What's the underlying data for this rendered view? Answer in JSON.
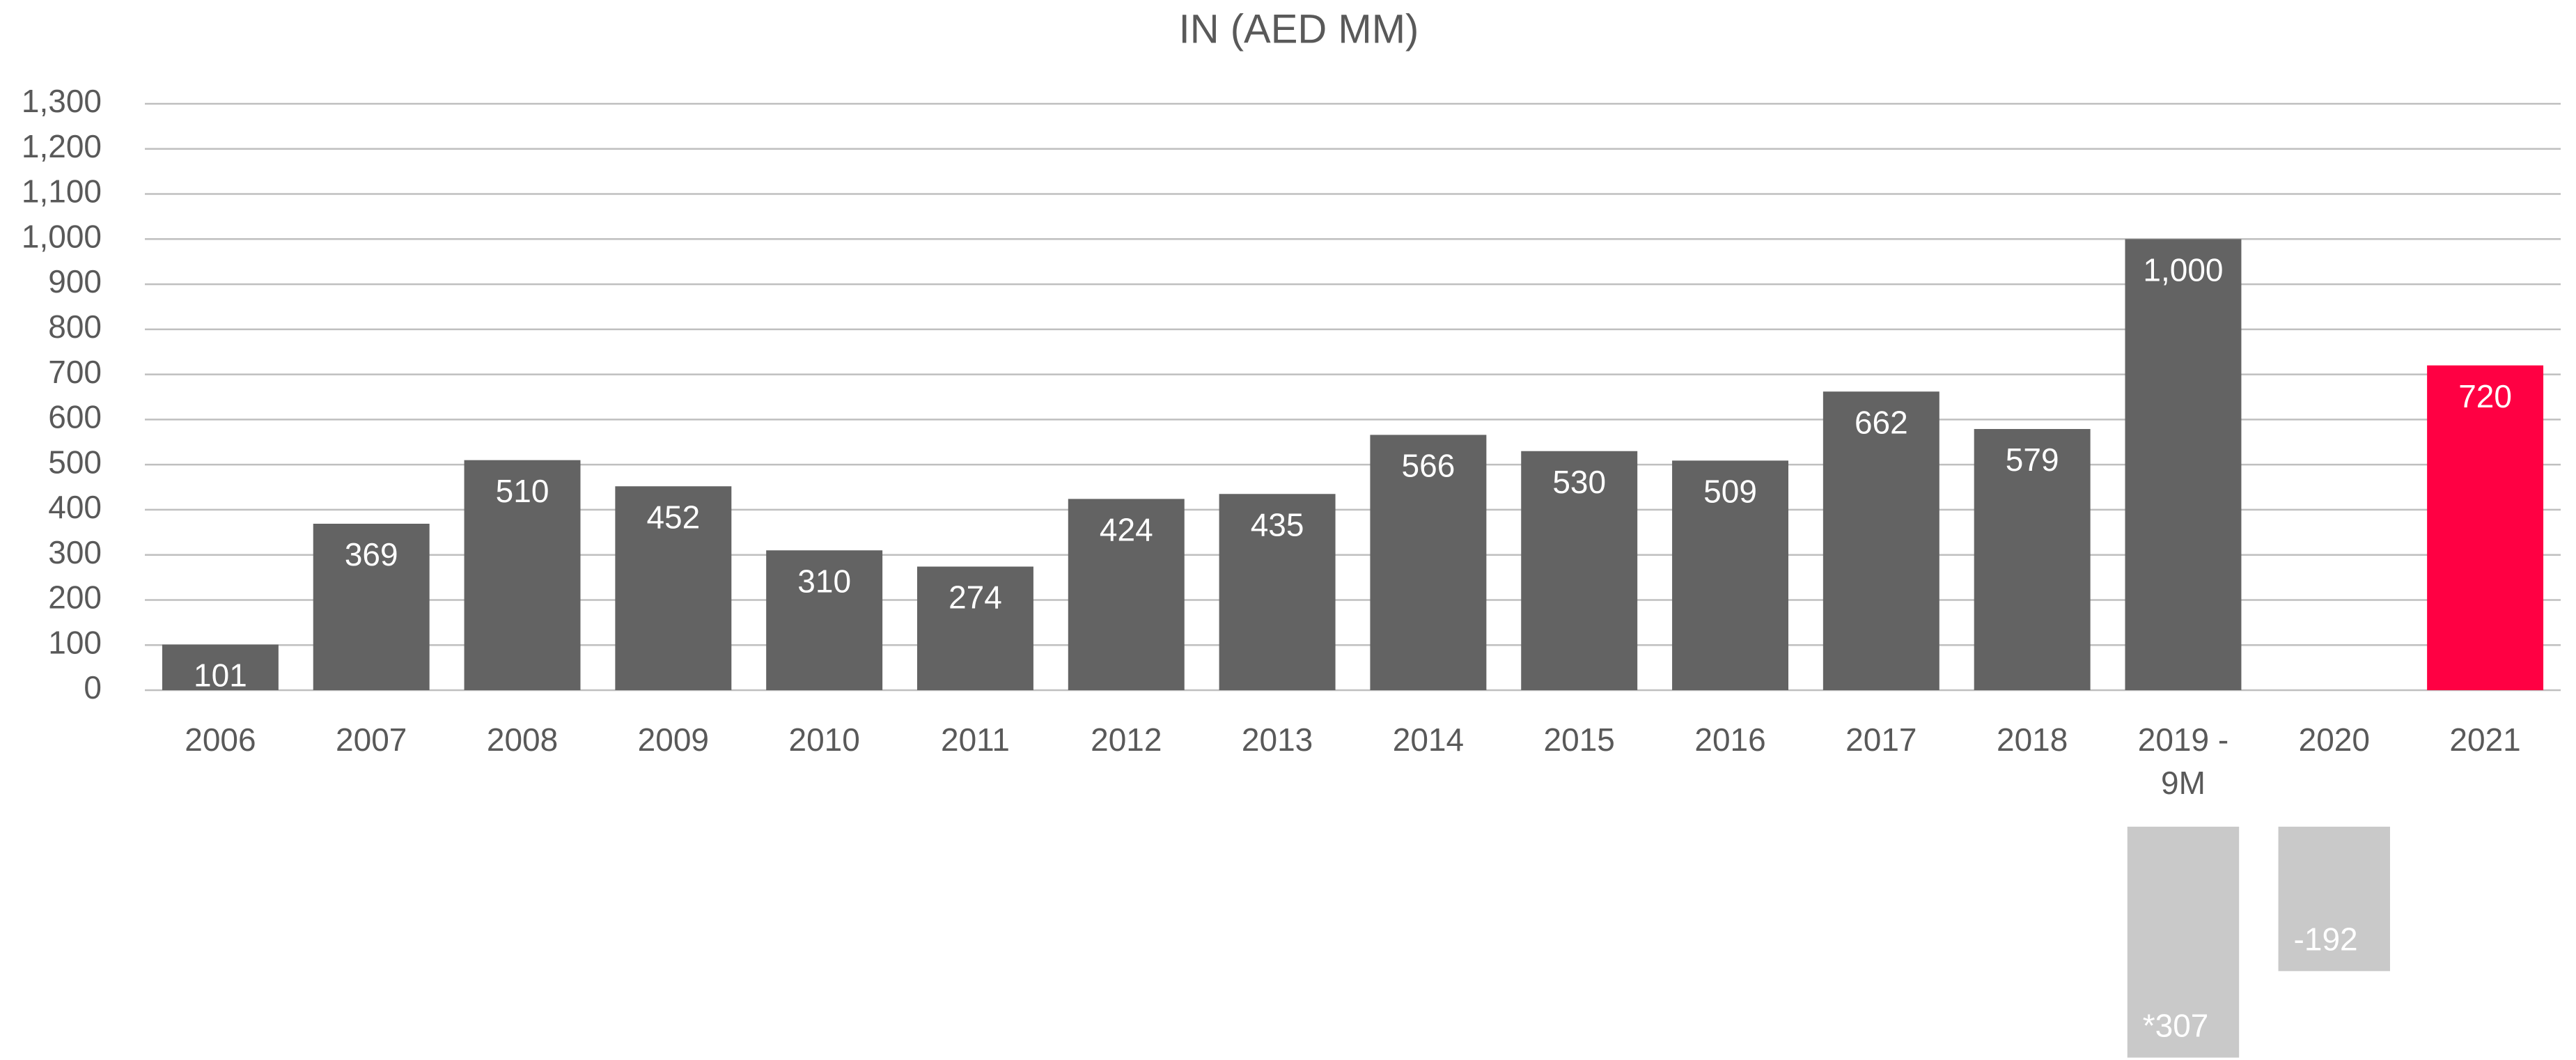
{
  "chart_data": {
    "type": "bar",
    "title": "IN (AED MM)",
    "categories": [
      "2006",
      "2007",
      "2008",
      "2009",
      "2010",
      "2011",
      "2012",
      "2013",
      "2014",
      "2015",
      "2016",
      "2017",
      "2018",
      "2019 - 9M",
      "2020",
      "2021"
    ],
    "series": [
      {
        "values": [
          101,
          369,
          510,
          452,
          310,
          274,
          424,
          435,
          566,
          530,
          509,
          662,
          579,
          1000,
          null,
          720
        ],
        "value_labels": [
          "101",
          "369",
          "510",
          "452",
          "310",
          "274",
          "424",
          "435",
          "566",
          "530",
          "509",
          "662",
          "579",
          "1,000",
          null,
          "720"
        ],
        "colors": [
          "#636363",
          "#636363",
          "#636363",
          "#636363",
          "#636363",
          "#636363",
          "#636363",
          "#636363",
          "#636363",
          "#636363",
          "#636363",
          "#636363",
          "#636363",
          "#636363",
          "#636363",
          "#ff0043"
        ]
      },
      {
        "values": [
          null,
          null,
          null,
          null,
          null,
          null,
          null,
          null,
          null,
          null,
          null,
          null,
          null,
          307,
          -192,
          null
        ],
        "value_labels": [
          null,
          null,
          null,
          null,
          null,
          null,
          null,
          null,
          null,
          null,
          null,
          null,
          null,
          "*307",
          "-192",
          null
        ],
        "color": "#c9c9c9"
      }
    ],
    "ylim": [
      0,
      1300
    ],
    "yticks": [
      0,
      100,
      200,
      300,
      400,
      500,
      600,
      700,
      800,
      900,
      {
        "value": 1000,
        "label": "1,000"
      },
      {
        "value": 1100,
        "label": "1,100"
      },
      {
        "value": 1200,
        "label": "1,200"
      },
      {
        "value": 1300,
        "label": "1,300"
      }
    ],
    "grid": true
  }
}
